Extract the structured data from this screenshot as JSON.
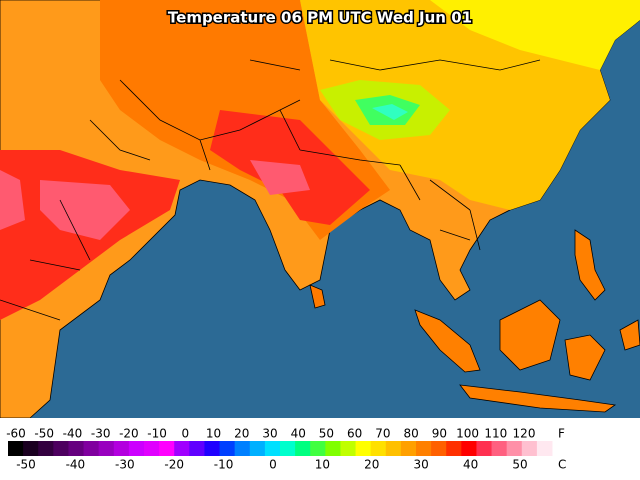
{
  "title": "Temperature 06 PM UTC Wed Jun 01",
  "legend": {
    "f_unit": "F",
    "c_unit": "C",
    "f_labels": [
      -60,
      -50,
      -40,
      -30,
      -20,
      -10,
      0,
      10,
      20,
      30,
      40,
      50,
      60,
      70,
      80,
      90,
      100,
      110,
      120
    ],
    "c_labels": [
      -50,
      -40,
      -30,
      -20,
      -10,
      0,
      10,
      20,
      30,
      40,
      50
    ],
    "colors": [
      "#000000",
      "#1a0020",
      "#33003f",
      "#4d005f",
      "#66007f",
      "#80009f",
      "#9900bf",
      "#b300df",
      "#cc00ff",
      "#e000ff",
      "#ff00ff",
      "#a000ff",
      "#6000ff",
      "#2000ff",
      "#0040ff",
      "#0080ff",
      "#00b0ff",
      "#00e0ff",
      "#00ffcc",
      "#00ff80",
      "#40ff40",
      "#80ff00",
      "#c0ff00",
      "#ffff00",
      "#ffe000",
      "#ffc000",
      "#ffa000",
      "#ff8000",
      "#ff6000",
      "#ff3000",
      "#ff0000",
      "#ff3050",
      "#ff6080",
      "#ff90a8",
      "#ffc0d0",
      "#ffe8f0"
    ]
  }
}
